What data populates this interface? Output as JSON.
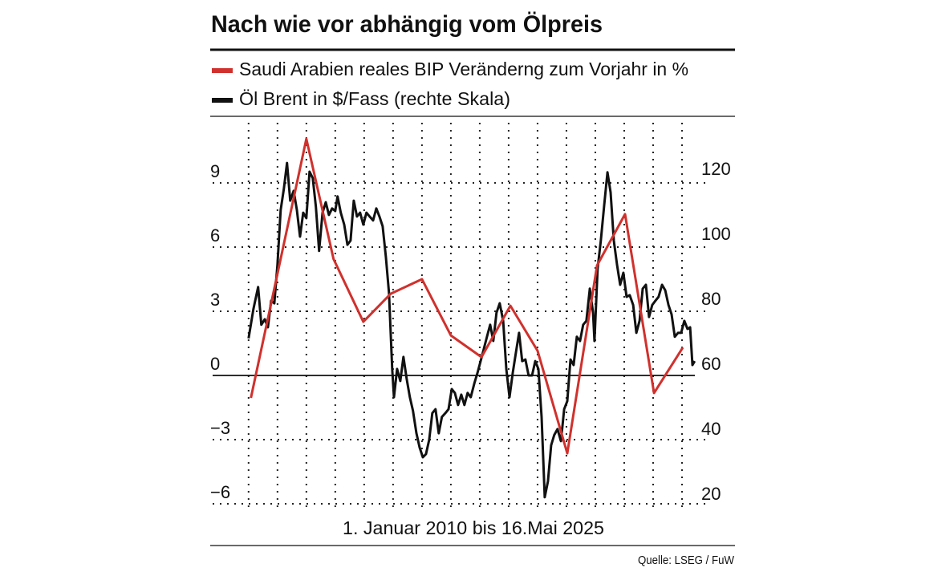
{
  "chart_data": {
    "type": "line",
    "title": "Nach wie vor abhängig vom Ölpreis",
    "x_label": "1. Januar 2010 bis 16.Mai 2025",
    "source": "Quelle: LSEG / FuW",
    "xlim": [
      2009.2,
      2025.5
    ],
    "xticks": [
      2010,
      2011,
      2012,
      2013,
      2014,
      2015,
      2016,
      2017,
      2018,
      2019,
      2020,
      2021,
      2022,
      2023,
      2024,
      2025
    ],
    "ylim": [
      -6.15,
      12
    ],
    "yticks": [
      {
        "value": -6,
        "label": "−6"
      },
      {
        "value": -3,
        "label": "−3"
      },
      0,
      3,
      6,
      9
    ],
    "y2lim": [
      19.5,
      139
    ],
    "y2ticks": [
      20,
      40,
      60,
      80,
      100,
      120
    ],
    "grid": true,
    "series": [
      {
        "name": "Saudi Arabien reales BIP Veränderng zum Vorjahr in %",
        "color": "#d0312d",
        "x": [
          2010.08,
          2012.0,
          2012.94,
          2013.97,
          2014.92,
          2016.0,
          2017.0,
          2018.06,
          2019.06,
          2020.0,
          2021.03,
          2022.06,
          2023.03,
          2024.03,
          2025.03
        ],
        "values": [
          -1.05,
          11.06,
          5.44,
          2.51,
          3.82,
          4.5,
          1.87,
          0.86,
          3.26,
          1.16,
          -3.64,
          5.14,
          7.54,
          -0.82,
          1.31
        ]
      },
      {
        "name": "Öl Brent in $/Fass (rechte Skala)",
        "color": "#111111",
        "axis": "y2",
        "x": [
          2010.0,
          2010.17,
          2010.33,
          2010.44,
          2010.56,
          2010.67,
          2010.78,
          2010.89,
          2011.0,
          2011.11,
          2011.22,
          2011.33,
          2011.44,
          2011.56,
          2011.67,
          2011.78,
          2011.89,
          2012.0,
          2012.11,
          2012.22,
          2012.33,
          2012.44,
          2012.56,
          2012.67,
          2012.78,
          2012.89,
          2013.0,
          2013.08,
          2013.19,
          2013.31,
          2013.42,
          2013.53,
          2013.64,
          2013.75,
          2013.86,
          2013.97,
          2014.08,
          2014.19,
          2014.31,
          2014.42,
          2014.53,
          2014.64,
          2014.75,
          2014.86,
          2014.97,
          2015.03,
          2015.14,
          2015.25,
          2015.36,
          2015.47,
          2015.58,
          2015.69,
          2015.81,
          2015.92,
          2016.03,
          2016.14,
          2016.25,
          2016.36,
          2016.47,
          2016.58,
          2016.69,
          2016.81,
          2016.92,
          2017.03,
          2017.14,
          2017.25,
          2017.36,
          2017.47,
          2017.58,
          2017.69,
          2017.81,
          2017.92,
          2018.03,
          2018.14,
          2018.25,
          2018.36,
          2018.47,
          2018.58,
          2018.69,
          2018.81,
          2018.92,
          2019.03,
          2019.14,
          2019.25,
          2019.36,
          2019.47,
          2019.58,
          2019.69,
          2019.81,
          2019.92,
          2020.03,
          2020.14,
          2020.25,
          2020.36,
          2020.47,
          2020.58,
          2020.69,
          2020.81,
          2020.92,
          2021.03,
          2021.14,
          2021.25,
          2021.36,
          2021.47,
          2021.58,
          2021.69,
          2021.81,
          2021.92,
          2021.97,
          2022.08,
          2022.19,
          2022.31,
          2022.42,
          2022.53,
          2022.64,
          2022.75,
          2022.86,
          2022.97,
          2023.08,
          2023.19,
          2023.31,
          2023.42,
          2023.53,
          2023.64,
          2023.75,
          2023.86,
          2023.97,
          2024.08,
          2024.19,
          2024.31,
          2024.42,
          2024.53,
          2024.64,
          2024.75,
          2024.86,
          2024.97,
          2025.08,
          2025.19,
          2025.28,
          2025.36,
          2025.44
        ],
        "values": [
          71.4,
          80.5,
          87.2,
          75.6,
          77.3,
          74.8,
          83.0,
          82.2,
          94.1,
          110.9,
          117.3,
          125.4,
          113.8,
          116.8,
          110.9,
          102.7,
          110.1,
          108.4,
          122.7,
          120.7,
          111.9,
          98.3,
          110.1,
          113.3,
          109.4,
          111.4,
          110.6,
          115.1,
          110.1,
          106.4,
          100.2,
          101.5,
          113.8,
          108.9,
          110.1,
          106.4,
          110.1,
          108.9,
          107.7,
          111.4,
          108.9,
          105.9,
          96.5,
          85.4,
          62.0,
          53.3,
          62.0,
          58.3,
          65.7,
          59.0,
          53.3,
          49.1,
          42.2,
          37.8,
          34.8,
          35.8,
          40.2,
          48.4,
          49.6,
          42.2,
          47.2,
          48.4,
          49.6,
          55.8,
          54.6,
          50.9,
          54.1,
          50.9,
          54.6,
          53.3,
          57.5,
          60.7,
          64.4,
          68.1,
          71.9,
          75.6,
          70.6,
          79.3,
          82.2,
          76.8,
          62.0,
          53.3,
          60.7,
          66.9,
          73.1,
          64.4,
          64.9,
          60.0,
          60.0,
          64.4,
          62.0,
          47.2,
          22.5,
          27.4,
          38.5,
          41.7,
          43.5,
          39.8,
          49.6,
          52.1,
          64.9,
          63.2,
          71.9,
          70.6,
          75.6,
          76.8,
          86.7,
          79.3,
          70.6,
          92.8,
          101.5,
          112.6,
          122.5,
          116.3,
          101.5,
          94.1,
          87.9,
          91.6,
          84.2,
          84.7,
          81.7,
          73.1,
          76.8,
          86.7,
          87.9,
          78.0,
          81.7,
          83.0,
          84.2,
          87.9,
          86.2,
          81.7,
          78.8,
          71.9,
          73.1,
          73.1,
          76.8,
          74.3,
          74.8,
          63.2,
          64.4
        ]
      }
    ]
  }
}
